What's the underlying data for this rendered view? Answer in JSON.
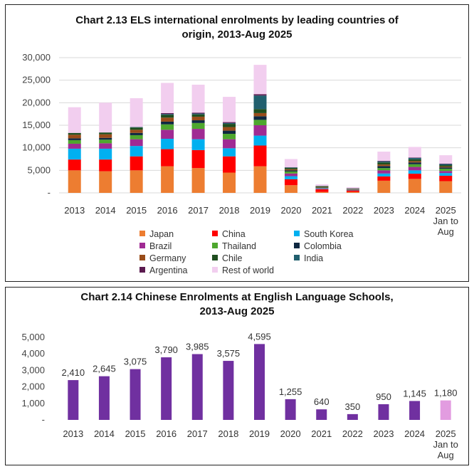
{
  "chart_data": [
    {
      "type": "bar",
      "stacked": true,
      "title_line1": "Chart 2.13  ELS international enrolments by leading countries of",
      "title_line2": "origin, 2013-Aug 2025",
      "categories": [
        "2013",
        "2014",
        "2015",
        "2016",
        "2017",
        "2018",
        "2019",
        "2020",
        "2021",
        "2022",
        "2023",
        "2024",
        "2025 Jan to Aug"
      ],
      "ylim": [
        0,
        30000
      ],
      "yticks": [
        "-",
        "5,000",
        "10,000",
        "15,000",
        "20,000",
        "25,000",
        "30,000"
      ],
      "grid": true,
      "legend_position": "bottom",
      "series": [
        {
          "name": "Japan",
          "color": "#ED7D31",
          "values": [
            5000,
            4800,
            5000,
            5900,
            5500,
            4500,
            5900,
            1700,
            200,
            200,
            2700,
            3100,
            2600
          ]
        },
        {
          "name": "China",
          "color": "#FF0000",
          "values": [
            2400,
            2600,
            3100,
            3800,
            4000,
            3600,
            4600,
            1300,
            600,
            350,
            950,
            1150,
            1200
          ]
        },
        {
          "name": "South Korea",
          "color": "#00B0F0",
          "values": [
            2400,
            2400,
            2300,
            2300,
            2400,
            1800,
            2200,
            700,
            100,
            100,
            650,
            750,
            600
          ]
        },
        {
          "name": "Brazil",
          "color": "#A02B93",
          "values": [
            1100,
            1200,
            1500,
            2000,
            2300,
            2000,
            2300,
            600,
            150,
            80,
            700,
            750,
            450
          ]
        },
        {
          "name": "Thailand",
          "color": "#4EA72E",
          "values": [
            800,
            800,
            900,
            1200,
            1300,
            1200,
            1200,
            450,
            120,
            60,
            500,
            600,
            500
          ]
        },
        {
          "name": "Colombia",
          "color": "#0E2841",
          "values": [
            400,
            400,
            500,
            600,
            600,
            700,
            800,
            250,
            80,
            50,
            450,
            400,
            300
          ]
        },
        {
          "name": "Germany",
          "color": "#994C1A",
          "values": [
            800,
            800,
            700,
            900,
            800,
            800,
            700,
            250,
            80,
            50,
            350,
            300,
            200
          ]
        },
        {
          "name": "Chile",
          "color": "#1F4E1F",
          "values": [
            400,
            400,
            500,
            600,
            500,
            700,
            900,
            300,
            150,
            80,
            450,
            400,
            300
          ]
        },
        {
          "name": "India",
          "color": "#215F6E",
          "values": [
            0,
            0,
            100,
            200,
            200,
            200,
            3000,
            100,
            50,
            30,
            250,
            300,
            250
          ]
        },
        {
          "name": "Argentina",
          "color": "#5B1A4F",
          "values": [
            0,
            0,
            0,
            200,
            200,
            200,
            300,
            50,
            20,
            20,
            100,
            100,
            80
          ]
        },
        {
          "name": "Rest of world",
          "color": "#F2CEEF",
          "values": [
            5700,
            6600,
            6400,
            6700,
            6200,
            5600,
            6500,
            1800,
            350,
            250,
            2050,
            2350,
            1870
          ]
        }
      ]
    },
    {
      "type": "bar",
      "title_line1": "Chart 2.14   Chinese Enrolments at English Language Schools,",
      "title_line2": "2013-Aug 2025",
      "categories": [
        "2013",
        "2014",
        "2015",
        "2016",
        "2017",
        "2018",
        "2019",
        "2020",
        "2021",
        "2022",
        "2023",
        "2024",
        "2025 Jan to Aug"
      ],
      "values": [
        2410,
        2645,
        3075,
        3790,
        3985,
        3575,
        4595,
        1255,
        640,
        350,
        950,
        1145,
        1180
      ],
      "value_labels": [
        "2,410",
        "2,645",
        "3,075",
        "3,790",
        "3,985",
        "3,575",
        "4,595",
        "1,255",
        "640",
        "350",
        "950",
        "1,145",
        "1,180"
      ],
      "ylim": [
        0,
        5000
      ],
      "yticks": [
        "-",
        "1,000",
        "2,000",
        "3,000",
        "4,000",
        "5,000"
      ],
      "grid": false,
      "bar_color": "#7030A0",
      "highlight_color": "#E29CE0"
    }
  ]
}
